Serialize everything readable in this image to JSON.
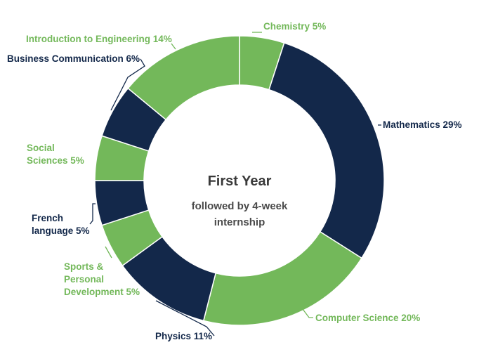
{
  "chart_data": {
    "type": "pie",
    "center_title": "First Year",
    "center_subtitle_lines": [
      "followed by 4-week",
      "internship"
    ],
    "colors": {
      "green": "#73b85a",
      "navy": "#13284a"
    },
    "slices": [
      {
        "label_lines": [
          "Chemistry 5%"
        ],
        "value": 5,
        "color": "green"
      },
      {
        "label_lines": [
          "Mathematics 29%"
        ],
        "value": 29,
        "color": "navy"
      },
      {
        "label_lines": [
          "Computer Science 20%"
        ],
        "value": 20,
        "color": "green"
      },
      {
        "label_lines": [
          "Physics 11%"
        ],
        "value": 11,
        "color": "navy"
      },
      {
        "label_lines": [
          "Sports &",
          "Personal",
          "Development 5%"
        ],
        "value": 5,
        "color": "green"
      },
      {
        "label_lines": [
          "French",
          "language 5%"
        ],
        "value": 5,
        "color": "navy"
      },
      {
        "label_lines": [
          "Social",
          "Sciences 5%"
        ],
        "value": 5,
        "color": "green"
      },
      {
        "label_lines": [
          "Business Communication 6%"
        ],
        "value": 6,
        "color": "navy"
      },
      {
        "label_lines": [
          "Introduction to Engineering 14%"
        ],
        "value": 14,
        "color": "green"
      }
    ]
  }
}
